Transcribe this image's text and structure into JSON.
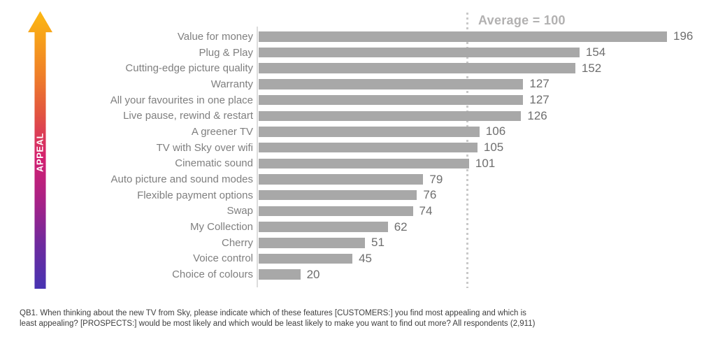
{
  "chart_data": {
    "type": "bar",
    "orientation": "horizontal",
    "axis_label": "APPEAL",
    "annotation": "Average = 100",
    "average_value": 100,
    "categories": [
      "Value for money",
      "Plug & Play",
      "Cutting-edge picture quality",
      "Warranty",
      "All your favourites in one place",
      "Live pause, rewind & restart",
      "A greener TV",
      "TV with Sky over wifi",
      "Cinematic sound",
      "Auto picture and sound modes",
      "Flexible payment options",
      "Swap",
      "My Collection",
      "Cherry",
      "Voice control",
      "Choice of colours"
    ],
    "values": [
      196,
      154,
      152,
      127,
      127,
      126,
      106,
      105,
      101,
      79,
      76,
      74,
      62,
      51,
      45,
      20
    ],
    "xlim": [
      0,
      210
    ],
    "grid": false,
    "legend": "none",
    "bar_color": "#a8a8a8"
  },
  "footnote": {
    "line1": "QB1. When thinking about the new TV from Sky, please indicate which of these features [CUSTOMERS:] you find most appealing and which is",
    "line2": "least appealing?  [PROSPECTS:] would be most likely and which would be least likely to make you want to find out more? All respondents (2,911)"
  },
  "colors": {
    "bar": "#a8a8a8",
    "category_label": "#7f7f7f",
    "value_label": "#6e6e6e",
    "average_text": "#b2b1b1",
    "dotted_line": "#c9c9c9",
    "axis_line": "#dcdcdc",
    "arrow_gradient_top": "#fcb813",
    "arrow_gradient_mid": "#d32070",
    "arrow_gradient_bottom": "#4733b2",
    "footnote_text": "#3e3e3e"
  }
}
